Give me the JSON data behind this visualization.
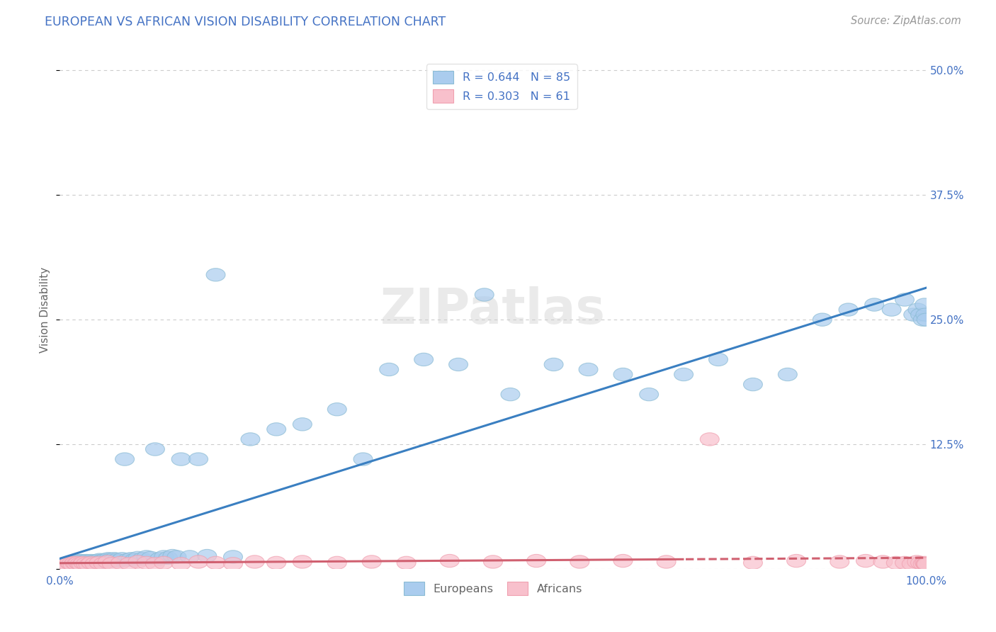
{
  "title": "EUROPEAN VS AFRICAN VISION DISABILITY CORRELATION CHART",
  "source": "Source: ZipAtlas.com",
  "ylabel": "Vision Disability",
  "xlim": [
    0,
    1.0
  ],
  "ylim": [
    0,
    0.52
  ],
  "yticks": [
    0.0,
    0.125,
    0.25,
    0.375,
    0.5
  ],
  "ytick_labels": [
    "",
    "12.5%",
    "25.0%",
    "37.5%",
    "50.0%"
  ],
  "xtick_labels": [
    "0.0%",
    "100.0%"
  ],
  "legend_r1": "R = 0.644",
  "legend_n1": "N = 85",
  "legend_r2": "R = 0.303",
  "legend_n2": "N = 61",
  "blue_color": "#8abbd4",
  "pink_color": "#f0a0b0",
  "blue_fill": "#aaccee",
  "pink_fill": "#f8c0cc",
  "blue_line_color": "#3a7fc1",
  "pink_line_color": "#d06070",
  "title_color": "#4472c4",
  "axis_label_color": "#666666",
  "tick_color": "#4472c4",
  "watermark": "ZIPatlas",
  "background_color": "#ffffff",
  "grid_color": "#cccccc",
  "eu_x": [
    0.005,
    0.008,
    0.01,
    0.012,
    0.014,
    0.015,
    0.016,
    0.018,
    0.02,
    0.022,
    0.023,
    0.025,
    0.026,
    0.028,
    0.03,
    0.031,
    0.033,
    0.034,
    0.036,
    0.038,
    0.04,
    0.042,
    0.044,
    0.046,
    0.048,
    0.05,
    0.052,
    0.054,
    0.056,
    0.058,
    0.06,
    0.063,
    0.066,
    0.069,
    0.072,
    0.075,
    0.078,
    0.082,
    0.086,
    0.09,
    0.095,
    0.1,
    0.105,
    0.11,
    0.115,
    0.12,
    0.125,
    0.13,
    0.135,
    0.14,
    0.15,
    0.16,
    0.17,
    0.18,
    0.2,
    0.22,
    0.25,
    0.28,
    0.32,
    0.35,
    0.38,
    0.42,
    0.46,
    0.49,
    0.52,
    0.57,
    0.61,
    0.65,
    0.68,
    0.72,
    0.76,
    0.8,
    0.84,
    0.88,
    0.91,
    0.94,
    0.96,
    0.975,
    0.985,
    0.99,
    0.993,
    0.996,
    0.998,
    0.999,
    1.0
  ],
  "eu_y": [
    0.004,
    0.005,
    0.006,
    0.005,
    0.007,
    0.006,
    0.005,
    0.007,
    0.006,
    0.008,
    0.007,
    0.006,
    0.008,
    0.007,
    0.005,
    0.008,
    0.007,
    0.006,
    0.008,
    0.007,
    0.006,
    0.008,
    0.007,
    0.009,
    0.008,
    0.007,
    0.009,
    0.008,
    0.01,
    0.009,
    0.008,
    0.01,
    0.009,
    0.008,
    0.01,
    0.11,
    0.009,
    0.01,
    0.009,
    0.011,
    0.01,
    0.012,
    0.011,
    0.12,
    0.01,
    0.012,
    0.011,
    0.013,
    0.012,
    0.11,
    0.012,
    0.11,
    0.013,
    0.295,
    0.012,
    0.13,
    0.14,
    0.145,
    0.16,
    0.11,
    0.2,
    0.21,
    0.205,
    0.275,
    0.175,
    0.205,
    0.2,
    0.195,
    0.175,
    0.195,
    0.21,
    0.185,
    0.195,
    0.25,
    0.26,
    0.265,
    0.26,
    0.27,
    0.255,
    0.26,
    0.255,
    0.25,
    0.265,
    0.255,
    0.25
  ],
  "af_x": [
    0.003,
    0.005,
    0.007,
    0.009,
    0.011,
    0.013,
    0.015,
    0.017,
    0.019,
    0.021,
    0.023,
    0.025,
    0.027,
    0.03,
    0.033,
    0.036,
    0.04,
    0.045,
    0.05,
    0.055,
    0.06,
    0.07,
    0.08,
    0.09,
    0.1,
    0.11,
    0.12,
    0.14,
    0.16,
    0.18,
    0.2,
    0.225,
    0.25,
    0.28,
    0.32,
    0.36,
    0.4,
    0.45,
    0.5,
    0.55,
    0.6,
    0.65,
    0.7,
    0.75,
    0.8,
    0.85,
    0.9,
    0.93,
    0.95,
    0.965,
    0.975,
    0.983,
    0.989,
    0.993,
    0.996,
    0.998,
    0.999,
    1.0,
    1.0,
    1.0,
    1.0
  ],
  "af_y": [
    0.003,
    0.004,
    0.005,
    0.004,
    0.006,
    0.005,
    0.004,
    0.006,
    0.005,
    0.006,
    0.005,
    0.004,
    0.006,
    0.005,
    0.004,
    0.006,
    0.005,
    0.006,
    0.005,
    0.007,
    0.005,
    0.006,
    0.005,
    0.007,
    0.006,
    0.005,
    0.006,
    0.005,
    0.007,
    0.006,
    0.005,
    0.007,
    0.006,
    0.007,
    0.006,
    0.007,
    0.006,
    0.008,
    0.007,
    0.008,
    0.007,
    0.008,
    0.007,
    0.13,
    0.006,
    0.008,
    0.007,
    0.008,
    0.007,
    0.006,
    0.006,
    0.005,
    0.007,
    0.006,
    0.005,
    0.006,
    0.005,
    0.004,
    0.005,
    0.004,
    0.005
  ]
}
